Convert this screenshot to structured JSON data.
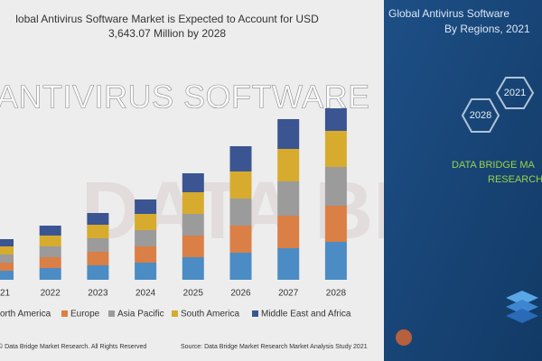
{
  "overlay_title": "ANTIVIRUS SOFTWARE",
  "chart_data": {
    "type": "bar",
    "stacked": true,
    "title": [
      "lobal Antivirus Software Market is Expected to Account for USD",
      "3,643.07 Million by 2028"
    ],
    "categories": [
      "21",
      "2022",
      "2023",
      "2024",
      "2025",
      "2026",
      "2027",
      "2028"
    ],
    "series": [
      {
        "name": "orth America",
        "color": "#4b8cc4",
        "values": [
          10,
          13,
          16,
          19,
          25,
          30,
          35,
          42
        ]
      },
      {
        "name": "Europe",
        "color": "#da7f45",
        "values": [
          9,
          12,
          15,
          18,
          24,
          30,
          36,
          40
        ]
      },
      {
        "name": "Asia Pacific",
        "color": "#9b9b9b",
        "values": [
          9,
          12,
          15,
          18,
          24,
          30,
          38,
          43
        ]
      },
      {
        "name": "South America",
        "color": "#d7ab2d",
        "values": [
          9,
          12,
          15,
          18,
          24,
          30,
          36,
          40
        ]
      },
      {
        "name": "Middle East and Africa",
        "color": "#3b5592",
        "values": [
          8,
          11,
          13,
          16,
          21,
          28,
          33,
          25
        ]
      }
    ],
    "ylim": [
      0,
      200
    ]
  },
  "footer": {
    "copyright": "© Data Bridge Market Research. All Rights Reserved",
    "source": "Source: Data Bridge Market Research Market Analysis Study 2021"
  },
  "side_panel": {
    "title": [
      "Global Antivirus Software",
      "By Regions, 2021"
    ],
    "hex_labels": [
      "2021",
      "2028"
    ],
    "brand": [
      "DATA BRIDGE MA",
      "RESEARCH"
    ]
  }
}
